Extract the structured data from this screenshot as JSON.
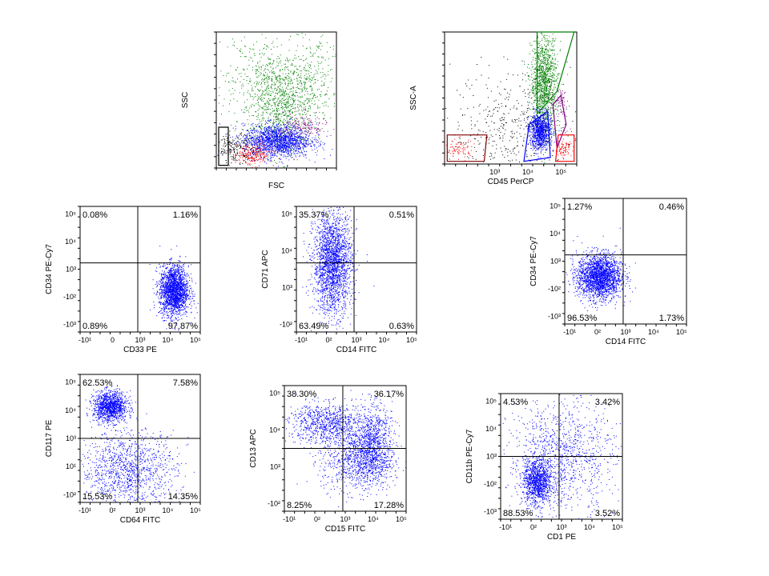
{
  "chart_data": [
    {
      "type": "scatter",
      "xlabel": "FSC",
      "ylabel": "SSC",
      "x_scale": "linear",
      "y_scale": "linear",
      "series": [
        {
          "name": "",
          "color": "#008000",
          "count": 1500,
          "clusters": [
            {
              "x": 0.55,
              "y": 0.45,
              "sx": 0.2,
              "sy": 0.2,
              "skew": 0.5
            }
          ]
        },
        {
          "name": "",
          "color": "#0000ff",
          "count": 1600,
          "clusters": [
            {
              "x": 0.5,
              "y": 0.2,
              "sx": 0.14,
              "sy": 0.06
            }
          ]
        },
        {
          "name": "",
          "color": "#ff0000",
          "count": 220,
          "clusters": [
            {
              "x": 0.3,
              "y": 0.1,
              "sx": 0.08,
              "sy": 0.04
            }
          ]
        },
        {
          "name": "",
          "color": "#800080",
          "count": 160,
          "clusters": [
            {
              "x": 0.72,
              "y": 0.3,
              "sx": 0.1,
              "sy": 0.05
            }
          ]
        },
        {
          "name": "",
          "color": "#000000",
          "count": 200,
          "clusters": [
            {
              "x": 0.15,
              "y": 0.15,
              "sx": 0.08,
              "sy": 0.05
            }
          ]
        }
      ]
    },
    {
      "type": "scatter",
      "xlabel": "CD45 PerCP",
      "ylabel": "SSC-A",
      "x_scale": "log",
      "y_scale": "linear",
      "x_ticks": [
        "10³",
        "10⁴",
        "10⁵"
      ],
      "series": [
        {
          "name": "",
          "color": "#008000",
          "count": 1200,
          "clusters": [
            {
              "x": 0.75,
              "y": 0.62,
              "sx": 0.05,
              "sy": 0.18
            }
          ]
        },
        {
          "name": "",
          "color": "#0000ff",
          "count": 900,
          "clusters": [
            {
              "x": 0.72,
              "y": 0.25,
              "sx": 0.04,
              "sy": 0.07
            }
          ]
        },
        {
          "name": "",
          "color": "#ff0000",
          "count": 160,
          "clusters": [
            {
              "x": 0.1,
              "y": 0.12,
              "sx": 0.06,
              "sy": 0.04
            },
            {
              "x": 0.9,
              "y": 0.12,
              "sx": 0.03,
              "sy": 0.03
            }
          ]
        },
        {
          "name": "",
          "color": "#800080",
          "count": 60,
          "clusters": [
            {
              "x": 0.88,
              "y": 0.45,
              "sx": 0.03,
              "sy": 0.08
            }
          ]
        },
        {
          "name": "",
          "color": "#000000",
          "count": 450,
          "clusters": [
            {
              "x": 0.5,
              "y": 0.3,
              "sx": 0.22,
              "sy": 0.2
            }
          ]
        }
      ]
    },
    {
      "type": "scatter",
      "xlabel": "CD33 PE",
      "ylabel": "CD34 PE-Cy7",
      "x_scale": "biexponential",
      "y_scale": "biexponential",
      "x_ticks": [
        "-10¹",
        "0",
        "10³",
        "10⁴",
        "10⁵"
      ],
      "y_ticks": [
        "10⁵",
        "10⁴",
        "10³",
        "-10²",
        "-10³"
      ],
      "quadrants": {
        "top_left": "0.08%",
        "top_right": "1.16%",
        "bottom_left": "0.89%",
        "bottom_right": "97.87%"
      },
      "series": [
        {
          "name": "",
          "color": "#0000ff",
          "count": 2000,
          "clusters": [
            {
              "x": 0.78,
              "y": 0.33,
              "sx": 0.06,
              "sy": 0.1
            }
          ]
        }
      ]
    },
    {
      "type": "scatter",
      "xlabel": "CD14 FITC",
      "ylabel": "CD71 APC",
      "x_scale": "biexponential",
      "y_scale": "biexponential",
      "x_ticks": [
        "-10¹",
        "0²",
        "10³",
        "10⁴",
        "10⁵"
      ],
      "y_ticks": [
        "10⁵",
        "10⁴",
        "10³",
        "-10²"
      ],
      "quadrants": {
        "top_left": "35.37%",
        "top_right": "0.51%",
        "bottom_left": "63.49%",
        "bottom_right": "0.63%"
      },
      "series": [
        {
          "name": "",
          "color": "#0000ff",
          "count": 2200,
          "clusters": [
            {
              "x": 0.3,
              "y": 0.55,
              "sx": 0.08,
              "sy": 0.2
            }
          ]
        }
      ]
    },
    {
      "type": "scatter",
      "xlabel": "CD14 FITC",
      "ylabel": "CD34 PE-Cy7",
      "x_scale": "biexponential",
      "y_scale": "biexponential",
      "x_ticks": [
        "-10¹",
        "0²",
        "10³",
        "10⁴",
        "10⁵"
      ],
      "y_ticks": [
        "10⁵",
        "10⁴",
        "10³",
        "-10²",
        "-10³"
      ],
      "quadrants": {
        "top_left": "1.27%",
        "top_right": "0.46%",
        "bottom_left": "96.53%",
        "bottom_right": "1.73%"
      },
      "series": [
        {
          "name": "",
          "color": "#0000ff",
          "count": 2200,
          "clusters": [
            {
              "x": 0.28,
              "y": 0.38,
              "sx": 0.09,
              "sy": 0.09
            }
          ]
        }
      ]
    },
    {
      "type": "scatter",
      "xlabel": "CD64 FITC",
      "ylabel": "CD117 PE",
      "x_scale": "biexponential",
      "y_scale": "biexponential",
      "x_ticks": [
        "-10¹",
        "0²",
        "10³",
        "10⁴",
        "10⁵"
      ],
      "y_ticks": [
        "10⁵",
        "10⁴",
        "10³",
        "10¹",
        "-10²"
      ],
      "quadrants": {
        "top_left": "62.53%",
        "top_right": "7.58%",
        "bottom_left": "15.53%",
        "bottom_right": "14.35%"
      },
      "series": [
        {
          "name": "",
          "color": "#0000ff",
          "count": 2400,
          "clusters": [
            {
              "x": 0.25,
              "y": 0.75,
              "sx": 0.07,
              "sy": 0.06
            },
            {
              "x": 0.4,
              "y": 0.25,
              "sx": 0.2,
              "sy": 0.15
            }
          ]
        }
      ]
    },
    {
      "type": "scatter",
      "xlabel": "CD15 FITC",
      "ylabel": "CD13 APC",
      "x_scale": "biexponential",
      "y_scale": "biexponential",
      "x_ticks": [
        "-10¹",
        "0²",
        "10³",
        "10⁴",
        "10⁵"
      ],
      "y_ticks": [
        "10⁵",
        "10⁴",
        "10³",
        "-10²"
      ],
      "quadrants": {
        "top_left": "38.30%",
        "top_right": "36.17%",
        "bottom_left": "8.25%",
        "bottom_right": "17.28%"
      },
      "series": [
        {
          "name": "",
          "color": "#0000ff",
          "count": 2600,
          "clusters": [
            {
              "x": 0.35,
              "y": 0.7,
              "sx": 0.16,
              "sy": 0.08
            },
            {
              "x": 0.72,
              "y": 0.55,
              "sx": 0.08,
              "sy": 0.15
            },
            {
              "x": 0.6,
              "y": 0.4,
              "sx": 0.15,
              "sy": 0.12
            }
          ]
        }
      ]
    },
    {
      "type": "scatter",
      "xlabel": "CD1 PE",
      "ylabel": "CD11b PE-Cy7",
      "x_scale": "biexponential",
      "y_scale": "biexponential",
      "x_ticks": [
        "-10¹",
        "0²",
        "10³",
        "10⁴",
        "10⁵"
      ],
      "y_ticks": [
        "10⁵",
        "10⁴",
        "10³",
        "-10²",
        "-10³"
      ],
      "quadrants": {
        "top_left": "4.53%",
        "top_right": "3.42%",
        "bottom_left": "88.53%",
        "bottom_right": "3.52%"
      },
      "series": [
        {
          "name": "",
          "color": "#0000ff",
          "count": 2200,
          "clusters": [
            {
              "x": 0.3,
              "y": 0.3,
              "sx": 0.06,
              "sy": 0.09
            },
            {
              "x": 0.5,
              "y": 0.5,
              "sx": 0.22,
              "sy": 0.22
            }
          ]
        }
      ]
    }
  ]
}
